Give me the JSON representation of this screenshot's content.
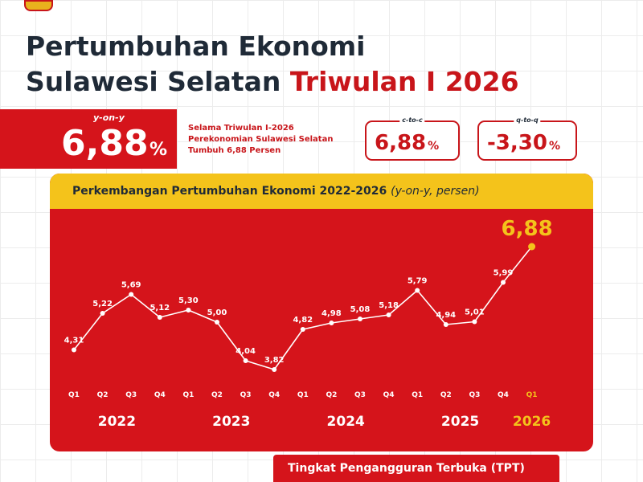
{
  "title": {
    "line1": "Pertumbuhan Ekonomi",
    "line2_main": "Sulawesi Selatan",
    "line2_accent": "Triwulan I 2026"
  },
  "headline": {
    "yoy_label": "y-on-y",
    "yoy_value": "6,88",
    "yoy_unit": "%",
    "description": [
      "Selama Triwulan I-2026",
      "Perekonomian Sulawesi Selatan",
      "Tumbuh 6,88 Persen"
    ],
    "ctc_label": "c-to-c",
    "ctc_value": "6,88",
    "ctc_unit": "%",
    "qtq_label": "q-to-q",
    "qtq_value": "-3,30",
    "qtq_unit": "%"
  },
  "chart_data": {
    "type": "line",
    "title": "Perkembangan Pertumbuhan Ekonomi 2022-2026",
    "subtitle": "(y-on-y, persen)",
    "categories": [
      "Q1",
      "Q2",
      "Q3",
      "Q4",
      "Q1",
      "Q2",
      "Q3",
      "Q4",
      "Q1",
      "Q2",
      "Q3",
      "Q4",
      "Q1",
      "Q2",
      "Q3",
      "Q4",
      "Q1"
    ],
    "years": [
      {
        "label": "2022",
        "start": 0,
        "end": 3
      },
      {
        "label": "2023",
        "start": 4,
        "end": 7
      },
      {
        "label": "2024",
        "start": 8,
        "end": 11
      },
      {
        "label": "2025",
        "start": 12,
        "end": 15
      },
      {
        "label": "2026",
        "start": 16,
        "end": 16
      }
    ],
    "values": [
      4.31,
      5.22,
      5.69,
      5.12,
      5.3,
      5.0,
      4.04,
      3.82,
      4.82,
      4.98,
      5.08,
      5.18,
      5.79,
      4.94,
      5.01,
      5.99,
      6.88
    ],
    "value_labels": [
      "4,31",
      "5,22",
      "5,69",
      "5,12",
      "5,30",
      "5,00",
      "4,04",
      "3,82",
      "4,82",
      "4,98",
      "5,08",
      "5,18",
      "5,79",
      "4,94",
      "5,01",
      "5,99",
      "6,88"
    ],
    "highlight_index": 16,
    "highlight_color": "#f4c31b",
    "line_color": "#ffffff",
    "background_color": "#d5141b",
    "ylim": [
      2.9,
      7.3
    ],
    "grid": false
  },
  "footer": {
    "tpt_label": "Tingkat Pengangguran Terbuka (TPT)"
  }
}
